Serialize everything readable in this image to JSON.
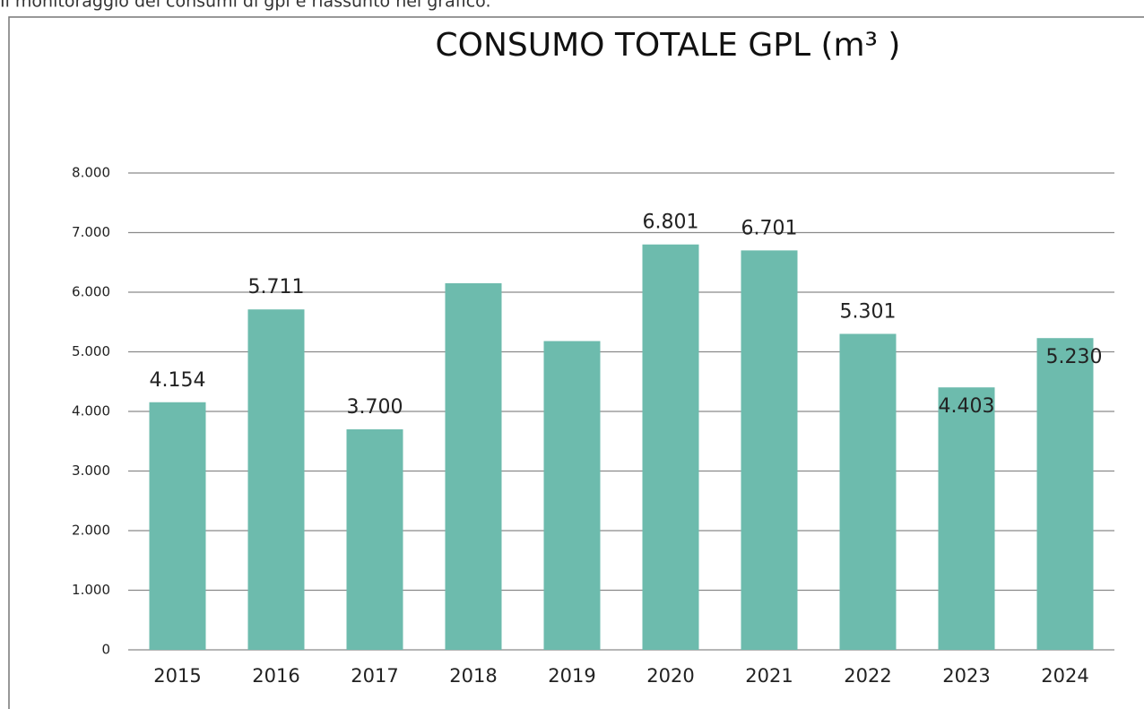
{
  "intro": "Il monitoraggio dei consumi di gpl è riassunto nel grafico.",
  "chart_data": {
    "type": "bar",
    "title": "CONSUMO TOTALE  GPL (m³ )",
    "categories": [
      "2015",
      "2016",
      "2017",
      "2018",
      "2019",
      "2020",
      "2021",
      "2022",
      "2023",
      "2024"
    ],
    "values": [
      4154,
      5711,
      3700,
      6150,
      5180,
      6801,
      6701,
      5301,
      4403,
      5230
    ],
    "value_labels": [
      "4.154",
      "5.711",
      "3.700",
      null,
      null,
      "6.801",
      "6.701",
      "5.301",
      "4.403",
      "5.230"
    ],
    "color": "#6dbbad",
    "ylim": [
      0,
      8000
    ],
    "yticks": [
      0,
      {
        "value": 1000,
        "label": "1.000"
      },
      {
        "value": 2000,
        "label": "2.000"
      },
      {
        "value": 3000,
        "label": "3.000"
      },
      {
        "value": 4000,
        "label": "4.000"
      },
      {
        "value": 5000,
        "label": "5.000"
      },
      {
        "value": 6000,
        "label": "6.000"
      },
      {
        "value": 7000,
        "label": "7.000"
      },
      {
        "value": 8000,
        "label": "8.000"
      }
    ],
    "grid": true
  }
}
